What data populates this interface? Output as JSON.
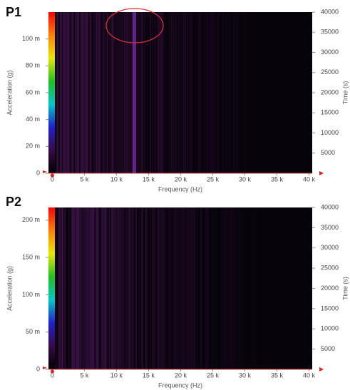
{
  "chart_data": [
    {
      "type": "heatmap",
      "title": "P1",
      "x_label": "Frequency (Hz)",
      "y_label": "Acceleration (g)",
      "y2_label": "Time (s)",
      "xlim": [
        -600,
        40500
      ],
      "xticks": [
        0,
        {
          "value": 5000,
          "label": "5 k"
        },
        {
          "value": 10000,
          "label": "10 k"
        },
        {
          "value": 15000,
          "label": "15 k"
        },
        {
          "value": 20000,
          "label": "20 k"
        },
        {
          "value": 25000,
          "label": "25 k"
        },
        {
          "value": 30000,
          "label": "30 k"
        },
        {
          "value": 35000,
          "label": "35 k"
        },
        {
          "value": 40000,
          "label": "40 k"
        }
      ],
      "ylim": [
        0,
        0.12
      ],
      "yticks": [
        0,
        {
          "value": 0.02,
          "label": "20 m"
        },
        {
          "value": 0.04,
          "label": "40 m"
        },
        {
          "value": 0.06,
          "label": "60 m"
        },
        {
          "value": 0.08,
          "label": "80 m"
        },
        {
          "value": 0.1,
          "label": "100 m"
        }
      ],
      "y2lim": [
        0,
        40000
      ],
      "y2ticks": [
        5000,
        10000,
        15000,
        20000,
        25000,
        30000,
        35000,
        40000
      ],
      "colormap": [
        "#000000",
        "#3a0a4a",
        "#2020d0",
        "#00c8c8",
        "#20c020",
        "#e8e800",
        "#ff8000",
        "#ff0000"
      ]
    },
    {
      "type": "heatmap",
      "title": "P2",
      "x_label": "Frequency (Hz)",
      "y_label": "Acceleration (g)",
      "y2_label": "Time (s)",
      "xlim": [
        -600,
        40500
      ],
      "xticks": [
        0,
        {
          "value": 5000,
          "label": "5 k"
        },
        {
          "value": 10000,
          "label": "10 k"
        },
        {
          "value": 15000,
          "label": "15 k"
        },
        {
          "value": 20000,
          "label": "20 k"
        },
        {
          "value": 25000,
          "label": "25 k"
        },
        {
          "value": 30000,
          "label": "30 k"
        },
        {
          "value": 35000,
          "label": "35 k"
        },
        {
          "value": 40000,
          "label": "40 k"
        }
      ],
      "ylim": [
        0,
        0.217
      ],
      "yticks": [
        0,
        {
          "value": 0.05,
          "label": "50 m"
        },
        {
          "value": 0.1,
          "label": "100 m"
        },
        {
          "value": 0.15,
          "label": "150 m"
        },
        {
          "value": 0.2,
          "label": "200 m"
        }
      ],
      "y2lim": [
        0,
        40000
      ],
      "y2ticks": [
        5000,
        10000,
        15000,
        20000,
        25000,
        30000,
        35000,
        40000
      ],
      "colormap": [
        "#000000",
        "#3a0a4a",
        "#2020d0",
        "#00c8c8",
        "#20c020",
        "#e8e800",
        "#ff8000",
        "#ff0000"
      ]
    }
  ]
}
